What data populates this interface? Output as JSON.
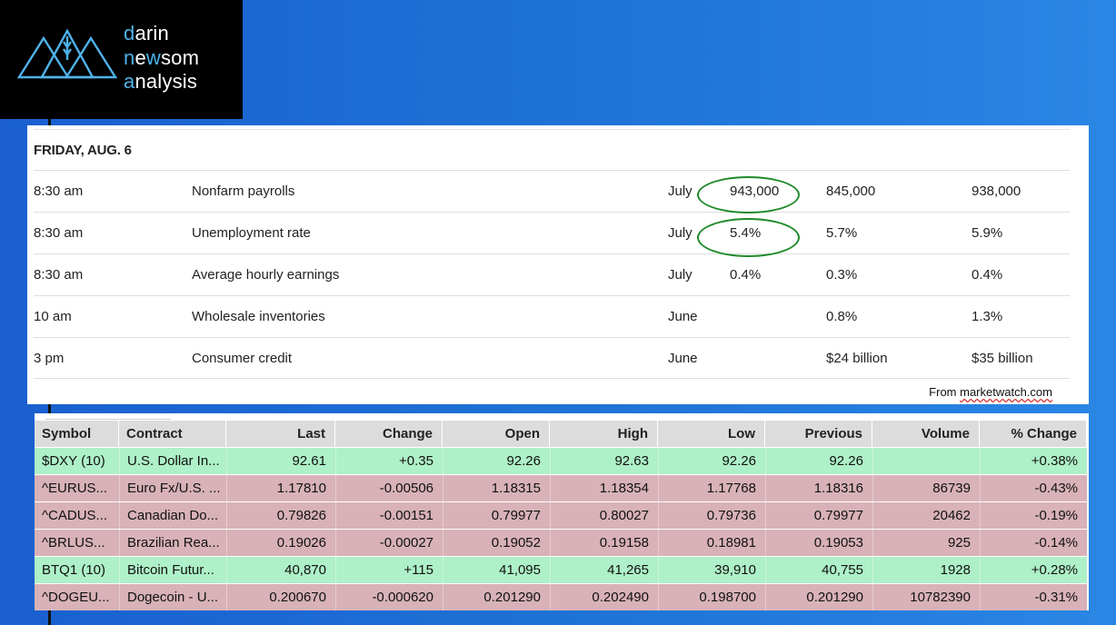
{
  "logo": {
    "line1_first": "d",
    "line1_rest": "arin",
    "line2_a": "n",
    "line2_b": "e",
    "line2_c": "w",
    "line2_d": "som",
    "line3_first": "a",
    "line3_rest": "nalysis"
  },
  "calendar": {
    "date": "FRIDAY, AUG. 6",
    "rows": [
      {
        "time": "8:30 am",
        "report": "Nonfarm payrolls",
        "period": "July",
        "actual": "943,000",
        "median": "845,000",
        "previous": "938,000",
        "circled": true
      },
      {
        "time": "8:30 am",
        "report": "Unemployment rate",
        "period": "July",
        "actual": "5.4%",
        "median": "5.7%",
        "previous": "5.9%",
        "circled": true
      },
      {
        "time": "8:30 am",
        "report": "Average hourly earnings",
        "period": "July",
        "actual": "0.4%",
        "median": "0.3%",
        "previous": "0.4%",
        "circled": false
      },
      {
        "time": "10 am",
        "report": "Wholesale inventories",
        "period": "June",
        "actual": "",
        "median": "0.8%",
        "previous": "1.3%",
        "circled": false
      },
      {
        "time": "3 pm",
        "report": "Consumer credit",
        "period": "June",
        "actual": "",
        "median": "$24 billion",
        "previous": "$35 billion",
        "circled": false
      }
    ],
    "source_prefix": "From ",
    "source_link": "marketwatch.com",
    "ring_color": "#1f8a2a"
  },
  "quotes": {
    "headers": [
      "Symbol",
      "Contract",
      "Last",
      "Change",
      "Open",
      "High",
      "Low",
      "Previous",
      "Volume",
      "% Change"
    ],
    "rows": [
      {
        "dir": "pos",
        "cells": [
          "$DXY (10)",
          "U.S. Dollar In...",
          "92.61",
          "+0.35",
          "92.26",
          "92.63",
          "92.26",
          "92.26",
          "",
          "+0.38%"
        ]
      },
      {
        "dir": "neg",
        "cells": [
          "^EURUS...",
          "Euro Fx/U.S. ...",
          "1.17810",
          "-0.00506",
          "1.18315",
          "1.18354",
          "1.17768",
          "1.18316",
          "86739",
          "-0.43%"
        ]
      },
      {
        "dir": "neg",
        "cells": [
          "^CADUS...",
          "Canadian Do...",
          "0.79826",
          "-0.00151",
          "0.79977",
          "0.80027",
          "0.79736",
          "0.79977",
          "20462",
          "-0.19%"
        ]
      },
      {
        "dir": "neg",
        "cells": [
          "^BRLUS...",
          "Brazilian Rea...",
          "0.19026",
          "-0.00027",
          "0.19052",
          "0.19158",
          "0.18981",
          "0.19053",
          "925",
          "-0.14%"
        ]
      },
      {
        "dir": "pos",
        "cells": [
          "BTQ1 (10)",
          "Bitcoin Futur...",
          "40,870",
          "+115",
          "41,095",
          "41,265",
          "39,910",
          "40,755",
          "1928",
          "+0.28%"
        ]
      },
      {
        "dir": "neg",
        "cells": [
          "^DOGEU...",
          "Dogecoin - U...",
          "0.200670",
          "-0.000620",
          "0.201290",
          "0.202490",
          "0.198700",
          "0.201290",
          "10782390",
          "-0.31%"
        ]
      }
    ],
    "up_color": "#aef0c7",
    "down_color": "#d8b2b8"
  }
}
